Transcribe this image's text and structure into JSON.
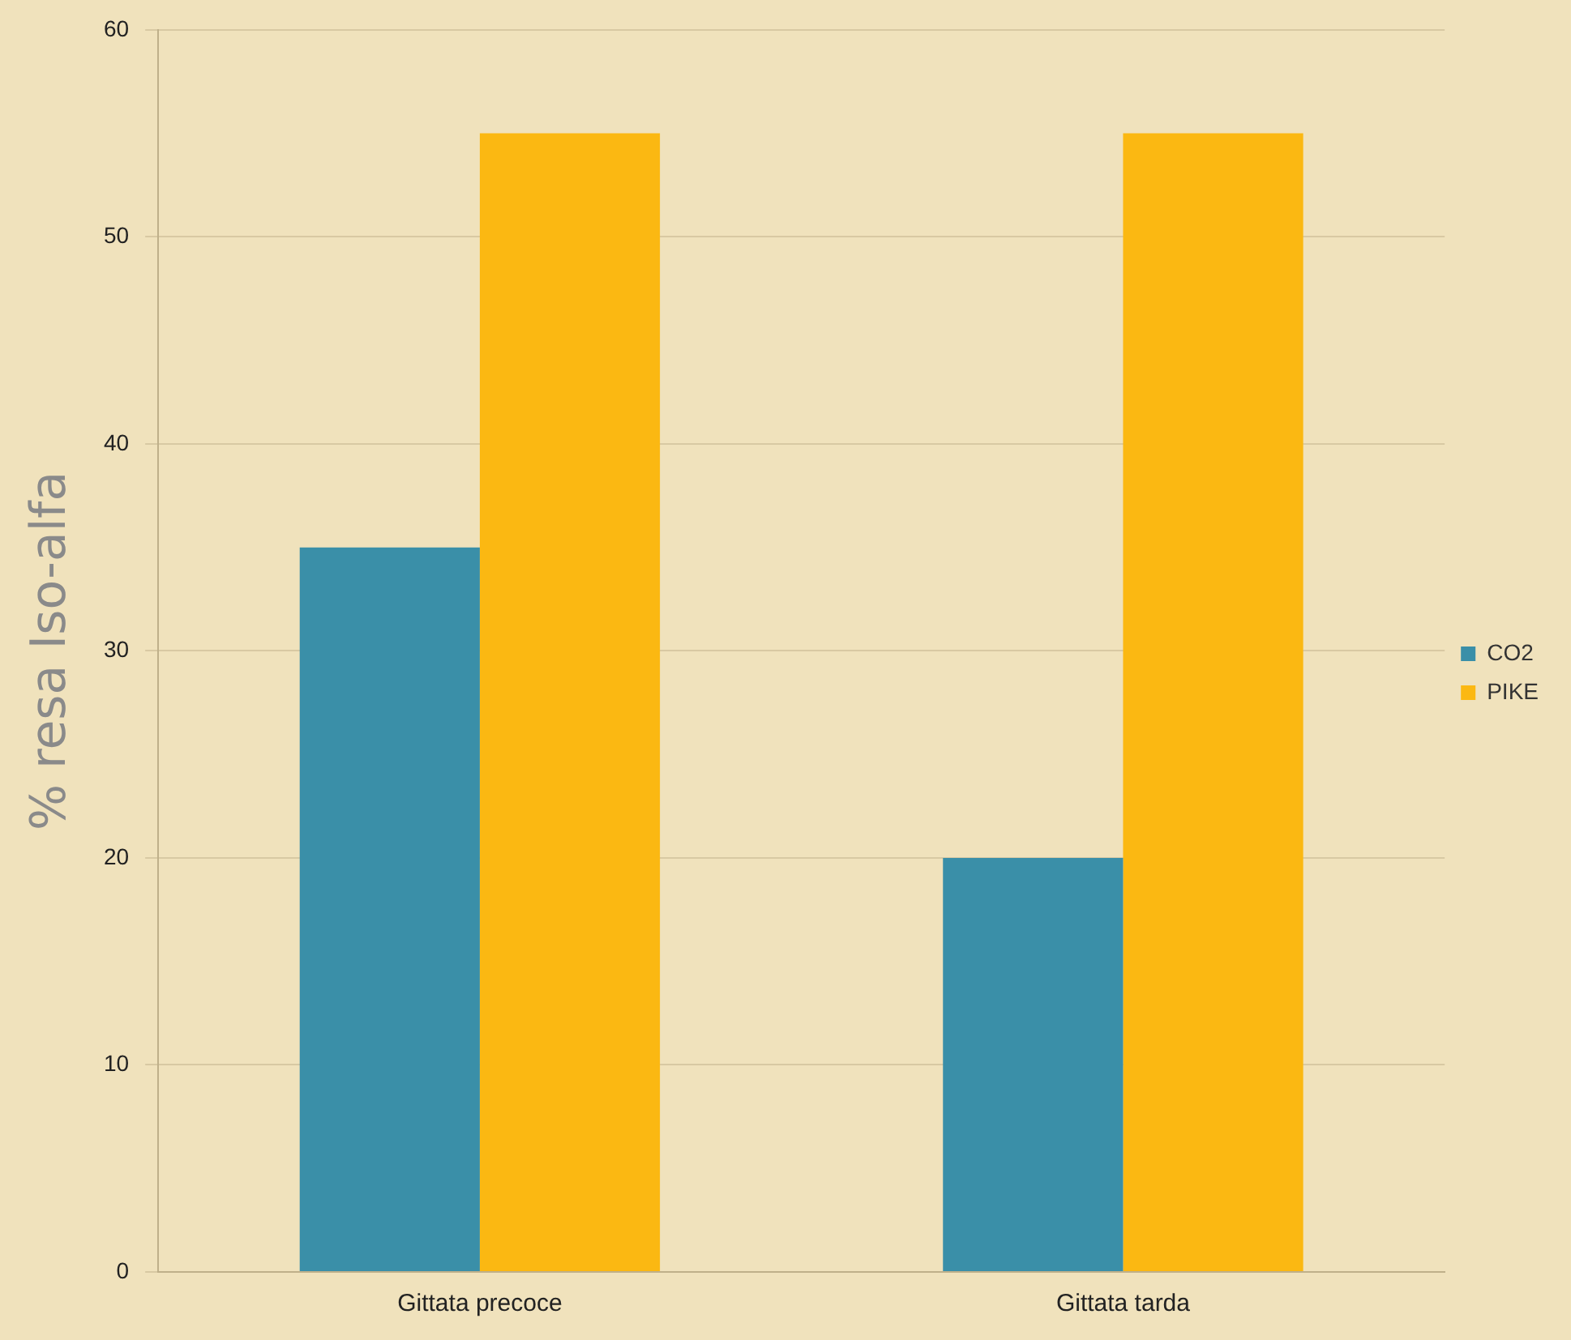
{
  "chart_data": {
    "type": "bar",
    "ylabel": "% resa Iso-alfa",
    "categories": [
      "Gittata precoce",
      "Gittata tarda"
    ],
    "series": [
      {
        "name": "CO2",
        "color": "#3a8fa8",
        "values": [
          35,
          20
        ]
      },
      {
        "name": "PIKE",
        "color": "#fbb812",
        "values": [
          55,
          55
        ]
      }
    ],
    "ylim": [
      0,
      60
    ],
    "yticks": [
      0,
      10,
      20,
      30,
      40,
      50,
      60
    ],
    "grid": "y",
    "legend": "right"
  }
}
